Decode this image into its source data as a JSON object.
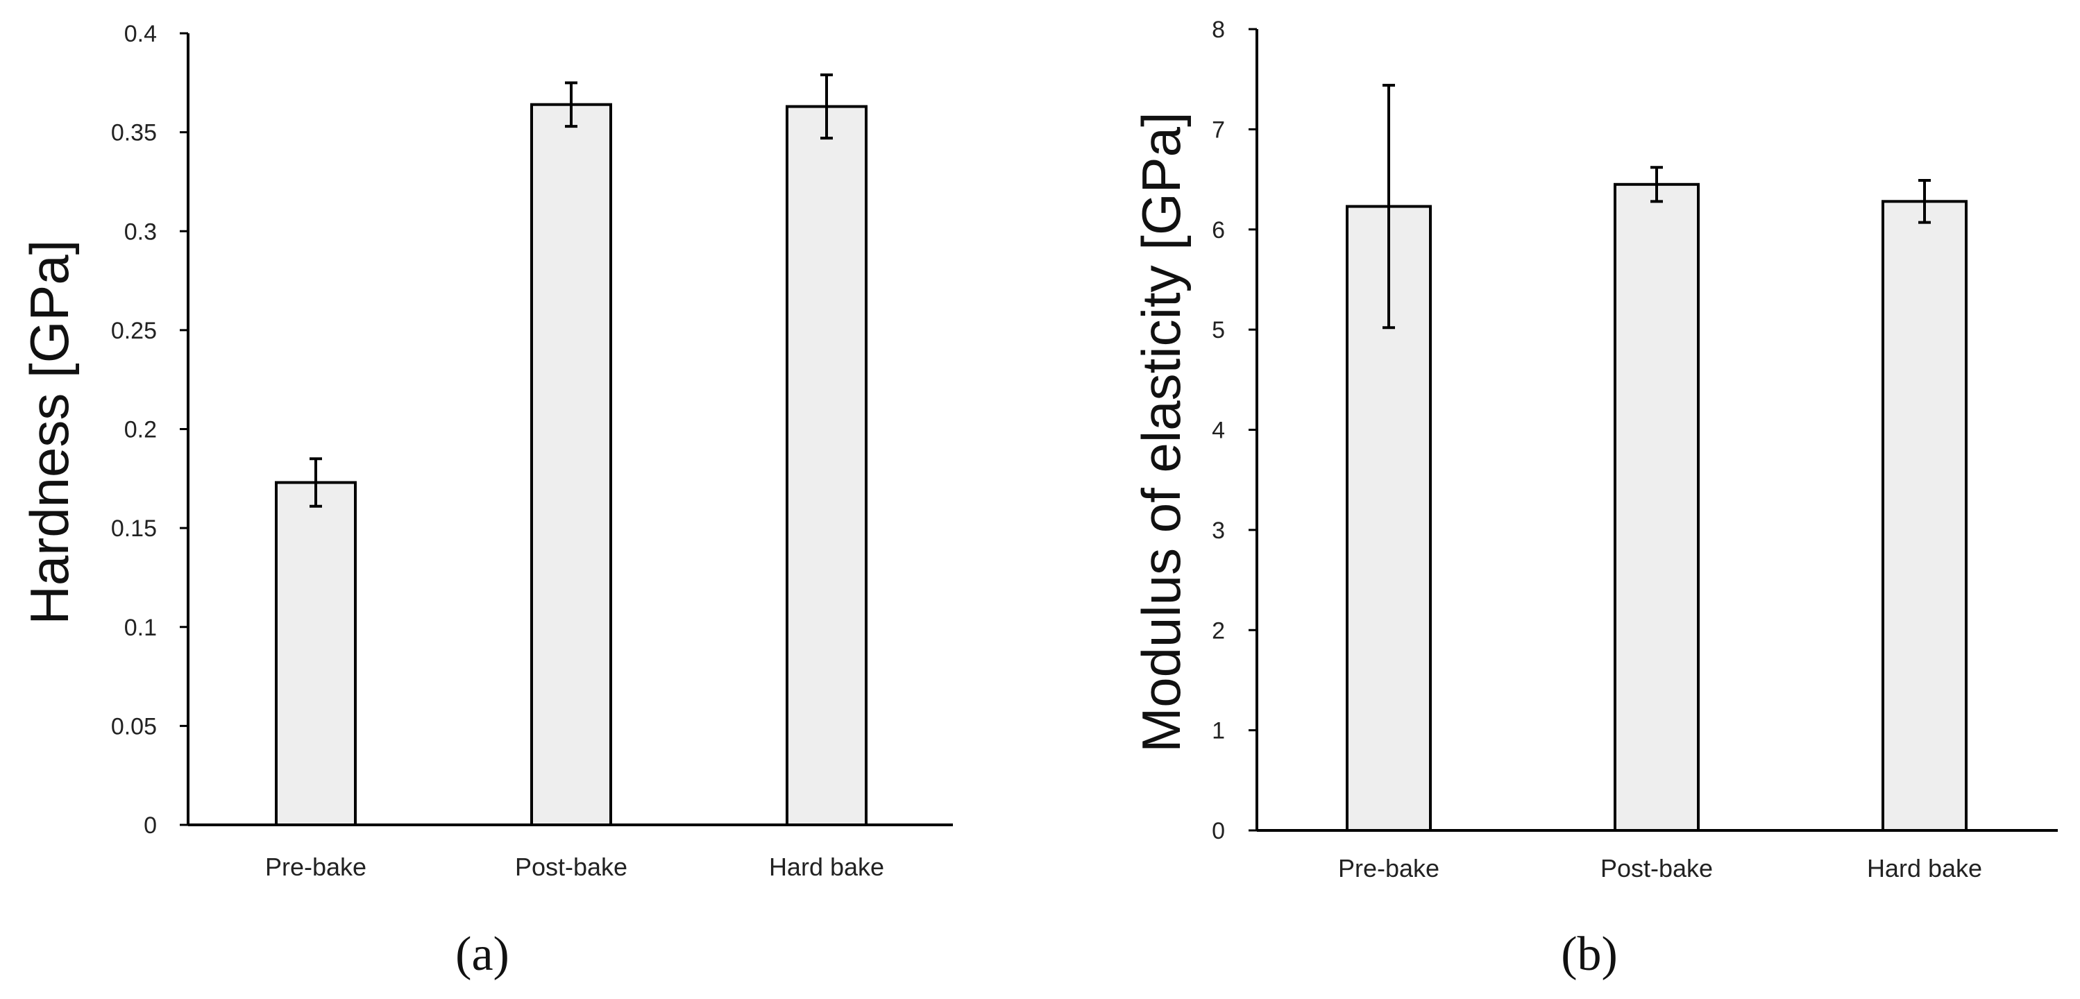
{
  "chart_data": [
    {
      "type": "bar",
      "panel_label": "(a)",
      "categories": [
        "Pre-bake",
        "Post-bake",
        "Hard bake"
      ],
      "values": [
        0.173,
        0.364,
        0.363
      ],
      "error": [
        0.012,
        0.011,
        0.016
      ],
      "xlabel": "",
      "ylabel": "Hardness [GPa]",
      "ylim": [
        0,
        0.4
      ],
      "yticks": [
        "0",
        "0.05",
        "0.1",
        "0.15",
        "0.2",
        "0.25",
        "0.3",
        "0.35",
        "0.4"
      ],
      "grid": false,
      "legend": "none",
      "bar_color": "#eeeeee",
      "edge_color": "#000000"
    },
    {
      "type": "bar",
      "panel_label": "(b)",
      "categories": [
        "Pre-bake",
        "Post-bake",
        "Hard bake"
      ],
      "values": [
        6.23,
        6.45,
        6.28
      ],
      "error": [
        1.21,
        0.17,
        0.21
      ],
      "xlabel": "",
      "ylabel": "Modulus of elasticity [GPa]",
      "ylim": [
        0,
        8
      ],
      "yticks": [
        "0",
        "1",
        "2",
        "3",
        "4",
        "5",
        "6",
        "7",
        "8"
      ],
      "grid": false,
      "legend": "none",
      "bar_color": "#eeeeee",
      "edge_color": "#000000"
    }
  ]
}
